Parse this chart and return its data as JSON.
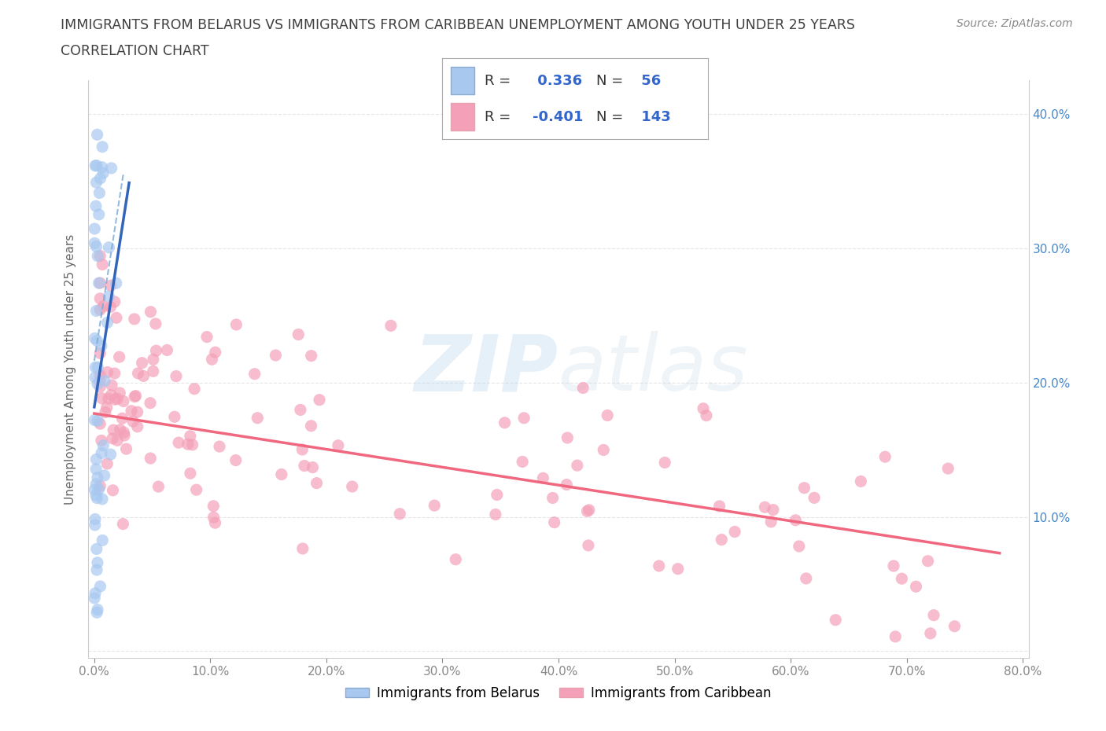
{
  "title_line1": "IMMIGRANTS FROM BELARUS VS IMMIGRANTS FROM CARIBBEAN UNEMPLOYMENT AMONG YOUTH UNDER 25 YEARS",
  "title_line2": "CORRELATION CHART",
  "source": "Source: ZipAtlas.com",
  "ylabel": "Unemployment Among Youth under 25 years",
  "xlim": [
    -0.005,
    0.805
  ],
  "ylim": [
    -0.005,
    0.425
  ],
  "xtick_vals": [
    0.0,
    0.1,
    0.2,
    0.3,
    0.4,
    0.5,
    0.6,
    0.7,
    0.8
  ],
  "ytick_vals": [
    0.0,
    0.1,
    0.2,
    0.3,
    0.4
  ],
  "belarus_color": "#a8c8f0",
  "caribbean_color": "#f4a0b8",
  "belarus_line_color": "#3366bb",
  "belarus_dash_color": "#7aaad8",
  "caribbean_line_color": "#f06880",
  "belarus_R": 0.336,
  "belarus_N": 56,
  "caribbean_R": -0.401,
  "caribbean_N": 143,
  "legend_label_belarus": "Immigrants from Belarus",
  "legend_label_caribbean": "Immigrants from Caribbean",
  "watermark": "ZIPatlas",
  "background_color": "#ffffff",
  "grid_color": "#e0e0e0",
  "title_color": "#404040",
  "axis_label_color": "#666666",
  "tick_color": "#888888",
  "right_tick_color": "#4488cc",
  "stat_color": "#3366cc",
  "stat_r_color": "#222222"
}
